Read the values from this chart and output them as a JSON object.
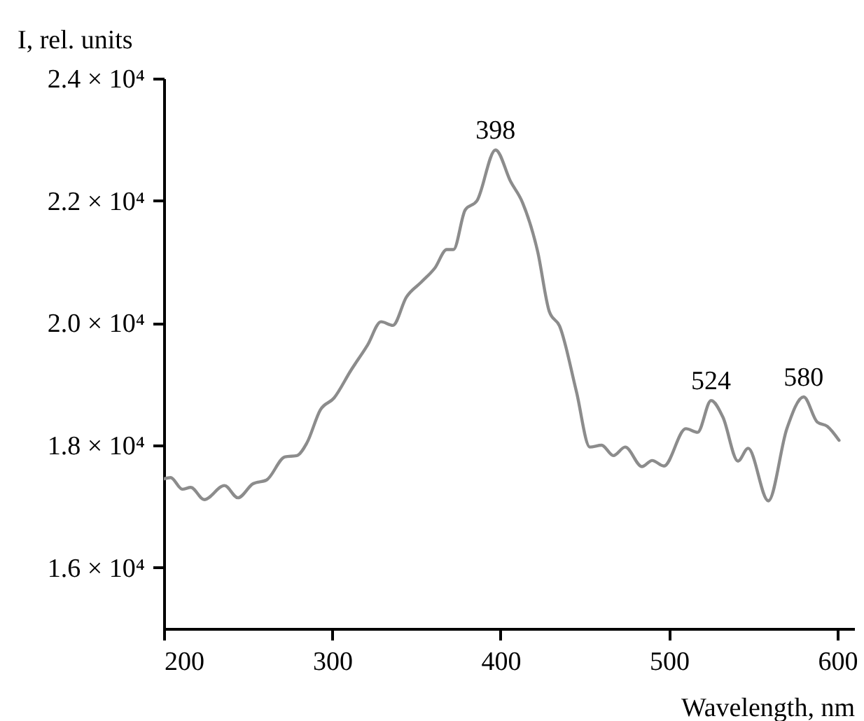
{
  "chart_data": {
    "type": "line",
    "xlabel": "Wavelength, nm",
    "ylabel": "I, rel. units",
    "x": [
      200,
      204,
      211,
      216,
      224,
      236,
      244,
      253,
      261,
      272,
      279,
      285,
      293,
      301,
      311,
      321,
      329,
      336,
      344,
      353,
      361,
      368,
      372,
      379,
      386,
      397,
      406,
      413,
      422,
      429,
      435,
      445,
      453,
      460,
      467,
      474,
      484,
      490,
      497,
      510,
      517,
      525,
      532,
      541,
      547,
      559,
      570,
      580,
      588,
      594,
      601
    ],
    "values": [
      17450,
      17470,
      17280,
      17310,
      17110,
      17340,
      17140,
      17370,
      17430,
      17810,
      17830,
      18040,
      18580,
      18770,
      19220,
      19640,
      20020,
      19960,
      20420,
      20670,
      20900,
      21200,
      21200,
      21850,
      22000,
      22830,
      22310,
      21970,
      21170,
      20180,
      19950,
      18880,
      17970,
      18000,
      17830,
      17970,
      17650,
      17750,
      17660,
      18270,
      18210,
      18730,
      18460,
      17740,
      17950,
      17090,
      18270,
      18790,
      18380,
      18310,
      18080
    ],
    "color": "#8c8c8c",
    "xlim": [
      200,
      610
    ],
    "ylim": [
      15000,
      24000
    ],
    "xticks": [
      200,
      300,
      400,
      500,
      600
    ],
    "yticks": [
      {
        "value": 16000,
        "label": "1.6 × 10⁴"
      },
      {
        "value": 18000,
        "label": "1.8 × 10⁴"
      },
      {
        "value": 20000,
        "label": "2.0 × 10⁴"
      },
      {
        "value": 22000,
        "label": "2.2 × 10⁴"
      },
      {
        "value": 24000,
        "label": "2.4 × 10⁴"
      }
    ],
    "annotations": [
      {
        "text": "398",
        "x": 397,
        "y": 22830
      },
      {
        "text": "524",
        "x": 525,
        "y": 18730
      },
      {
        "text": "580",
        "x": 580,
        "y": 18790
      }
    ]
  }
}
